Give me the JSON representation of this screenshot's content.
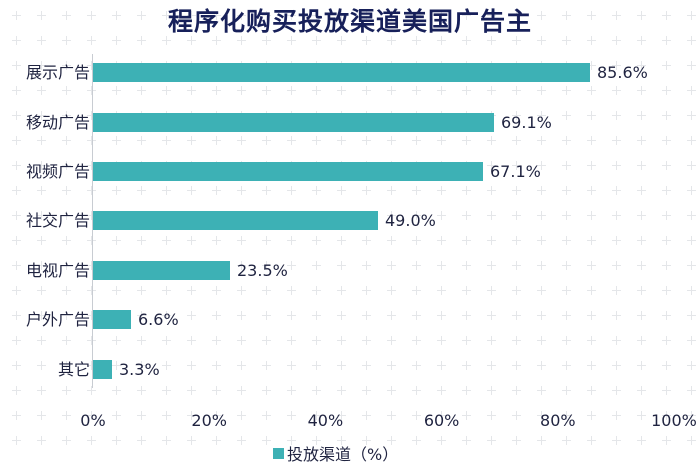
{
  "chart_data": {
    "type": "bar",
    "orientation": "horizontal",
    "title": "程序化购买投放渠道美国广告主",
    "categories": [
      "展示广告",
      "移动广告",
      "视频广告",
      "社交广告",
      "电视广告",
      "户外广告",
      "其它"
    ],
    "series": [
      {
        "name": "投放渠道（%）",
        "values": [
          85.6,
          69.1,
          67.1,
          49.0,
          23.5,
          6.6,
          3.3
        ],
        "labels": [
          "85.6%",
          "69.1%",
          "67.1%",
          "49.0%",
          "23.5%",
          "6.6%",
          "3.3%"
        ]
      }
    ],
    "xlabel": "",
    "ylabel": "",
    "xlim": [
      0,
      100
    ],
    "xticks": [
      "0%",
      "20%",
      "40%",
      "60%",
      "80%",
      "100%"
    ],
    "grid": false,
    "legend_position": "bottom",
    "colors": {
      "bar": "#3db1b5",
      "title": "#17205a",
      "text": "#1f2340"
    }
  },
  "legend": {
    "label": "投放渠道（%）"
  }
}
